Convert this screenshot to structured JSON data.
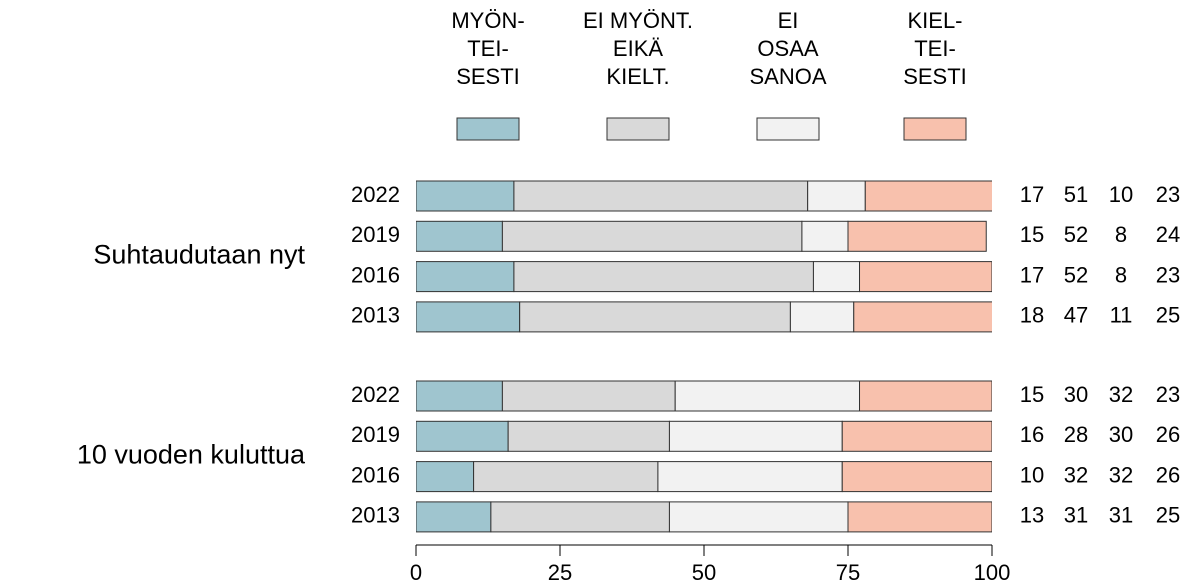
{
  "chart_data": {
    "type": "bar",
    "orientation": "horizontal",
    "stacked": true,
    "group_labels": [
      "Suhtaudutaan nyt",
      "10 vuoden kuluttua"
    ],
    "categories": [
      "2022",
      "2019",
      "2016",
      "2013",
      "2022",
      "2019",
      "2016",
      "2013"
    ],
    "series": [
      {
        "name": "MYÖN-\nTEI-\nSESTI",
        "color": "#9fc5cf",
        "values": [
          17,
          15,
          17,
          18,
          15,
          16,
          10,
          13
        ]
      },
      {
        "name": "EI MYÖNT.\nEIKÄ\nKIELT.",
        "color": "#d9d9d9",
        "values": [
          51,
          52,
          52,
          47,
          30,
          28,
          32,
          31
        ]
      },
      {
        "name": "EI\nOSAA\nSANOA",
        "color": "#f2f2f2",
        "values": [
          10,
          8,
          8,
          11,
          32,
          30,
          32,
          31
        ]
      },
      {
        "name": "KIEL-\nTEI-\nSESTI",
        "color": "#f8c1ad",
        "values": [
          23,
          24,
          23,
          25,
          23,
          26,
          26,
          25
        ]
      }
    ],
    "xlim": [
      0,
      100
    ],
    "xticks": [
      0,
      25,
      50,
      75,
      100
    ]
  }
}
